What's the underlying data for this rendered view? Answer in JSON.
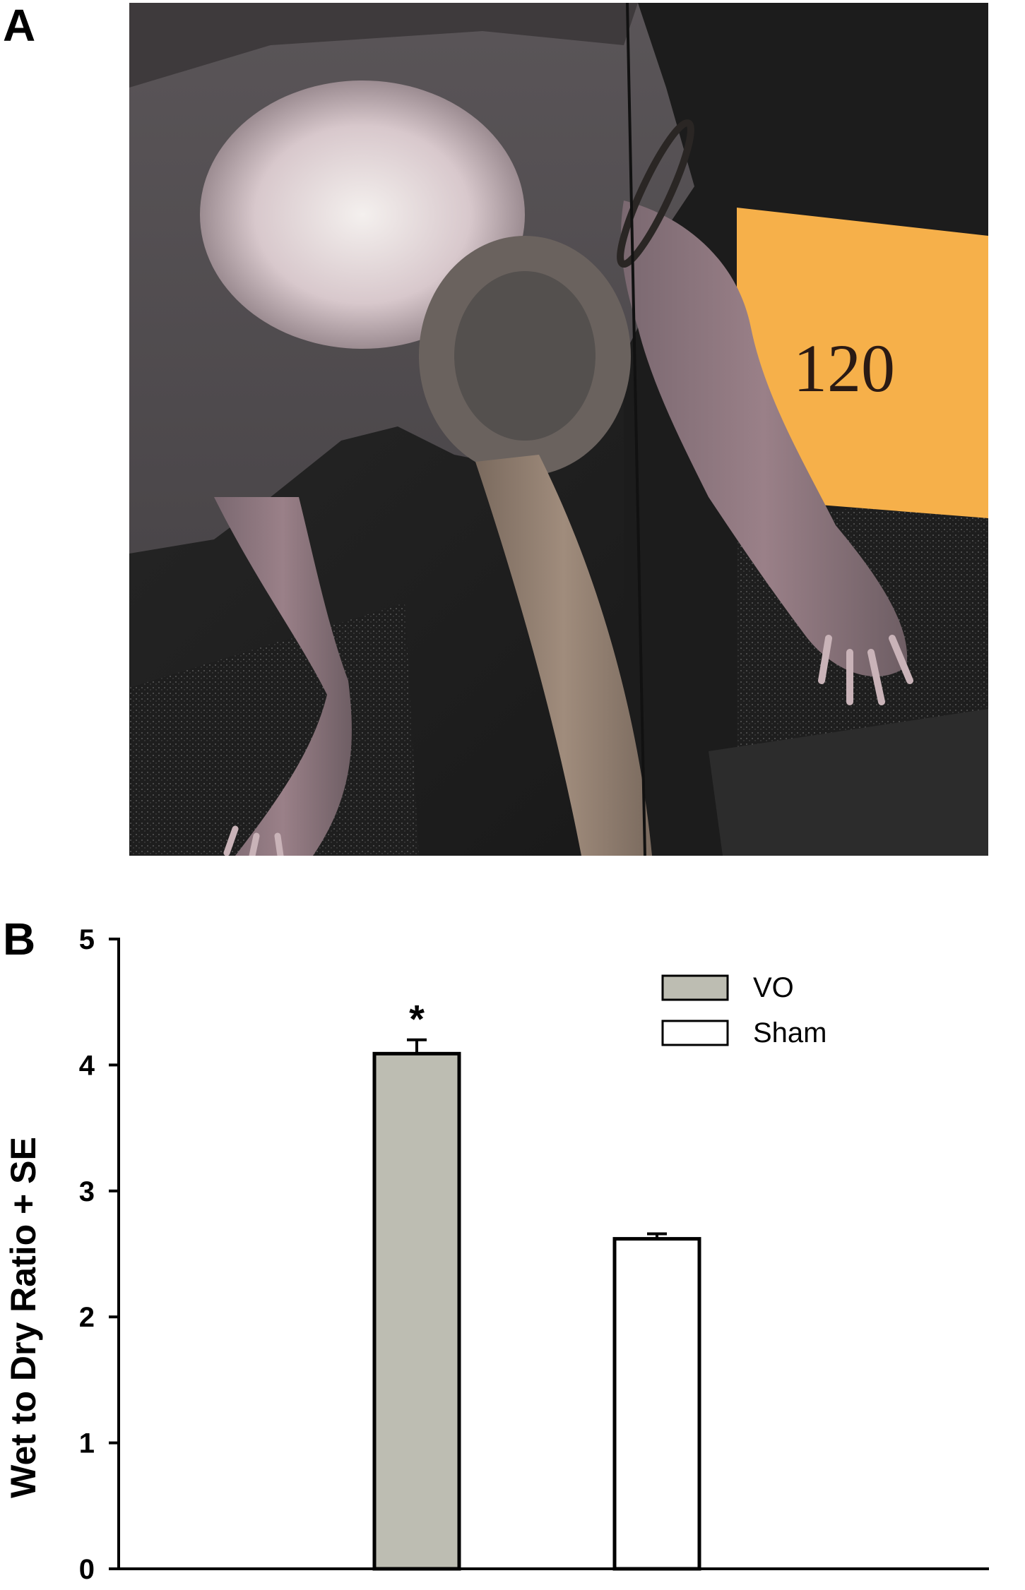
{
  "panels": {
    "a_label": "A",
    "b_label": "B"
  },
  "photo": {
    "tag_text": "120"
  },
  "chart_data": {
    "type": "bar",
    "ylabel": "Wet to Dry Ratio + SE",
    "ylim": [
      0,
      5
    ],
    "yticks": [
      0,
      1,
      2,
      3,
      4,
      5
    ],
    "categories": [
      "VO",
      "Sham"
    ],
    "values": [
      4.09,
      2.62
    ],
    "errors": [
      0.11,
      0.04
    ],
    "colors": [
      "#bdbdb2",
      "#ffffff"
    ],
    "significance": [
      "*",
      ""
    ],
    "legend": {
      "position": "top-right",
      "entries": [
        {
          "label": "VO",
          "color": "#bdbdb2"
        },
        {
          "label": "Sham",
          "color": "#ffffff"
        }
      ]
    },
    "grid": false
  }
}
